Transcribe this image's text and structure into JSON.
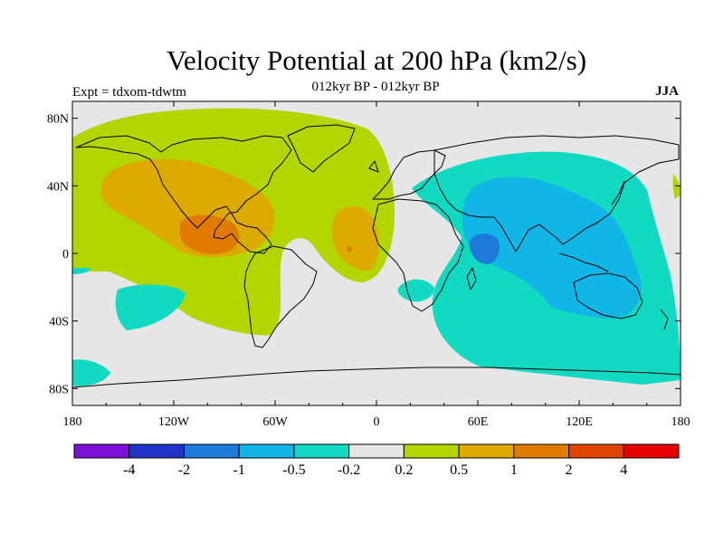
{
  "title": "Velocity Potential at 200 hPa (km2/s)",
  "subtitle": "012kyr BP - 012kyr BP",
  "left_label": "Expt = tdxom-tdwtm",
  "right_label": "JJA",
  "chart_data": {
    "type": "map",
    "projection": "cylindrical equidistant",
    "lon_range": [
      -180,
      180
    ],
    "lat_range": [
      -90,
      90
    ],
    "x_ticks": [
      {
        "value": -180,
        "label": "180"
      },
      {
        "value": -120,
        "label": "120W"
      },
      {
        "value": -60,
        "label": "60W"
      },
      {
        "value": 0,
        "label": "0"
      },
      {
        "value": 60,
        "label": "60E"
      },
      {
        "value": 120,
        "label": "120E"
      },
      {
        "value": 180,
        "label": "180"
      }
    ],
    "y_ticks": [
      {
        "value": 80,
        "label": "80N"
      },
      {
        "value": 40,
        "label": "40N"
      },
      {
        "value": 0,
        "label": "0"
      },
      {
        "value": -40,
        "label": "40S"
      },
      {
        "value": -80,
        "label": "80S"
      }
    ],
    "colorbar": {
      "levels": [
        "-4",
        "-2",
        "-1",
        "-0.5",
        "-0.2",
        "0.2",
        "0.5",
        "1",
        "2",
        "4"
      ],
      "colors": [
        "#7b10d9",
        "#2233cc",
        "#1e7ad8",
        "#12b6e6",
        "#12d9c2",
        "#e6e6e6",
        "#b3d600",
        "#dcaa00",
        "#e07a00",
        "#e04400",
        "#e60000"
      ]
    },
    "regions": [
      {
        "category": "0.2 to 0.5",
        "note": "broad positive area over the Americas and Atlantic, tropical and subtropical belt from the Pacific to West Africa"
      },
      {
        "category": "0.5 to 1",
        "note": "North America, eastern Pacific and West African sector"
      },
      {
        "category": "1 to 2",
        "note": "Central America / eastern tropical Pacific maximum"
      },
      {
        "category": "-0.5 to -0.2",
        "note": "broad negative area over the Indian Ocean, Asia and the western Pacific"
      },
      {
        "category": "-1 to -0.5",
        "note": "Indian Ocean, South and Southeast Asia, western Pacific"
      },
      {
        "category": "-2 to -1",
        "note": "equatorial Indian Ocean minimum"
      }
    ]
  }
}
